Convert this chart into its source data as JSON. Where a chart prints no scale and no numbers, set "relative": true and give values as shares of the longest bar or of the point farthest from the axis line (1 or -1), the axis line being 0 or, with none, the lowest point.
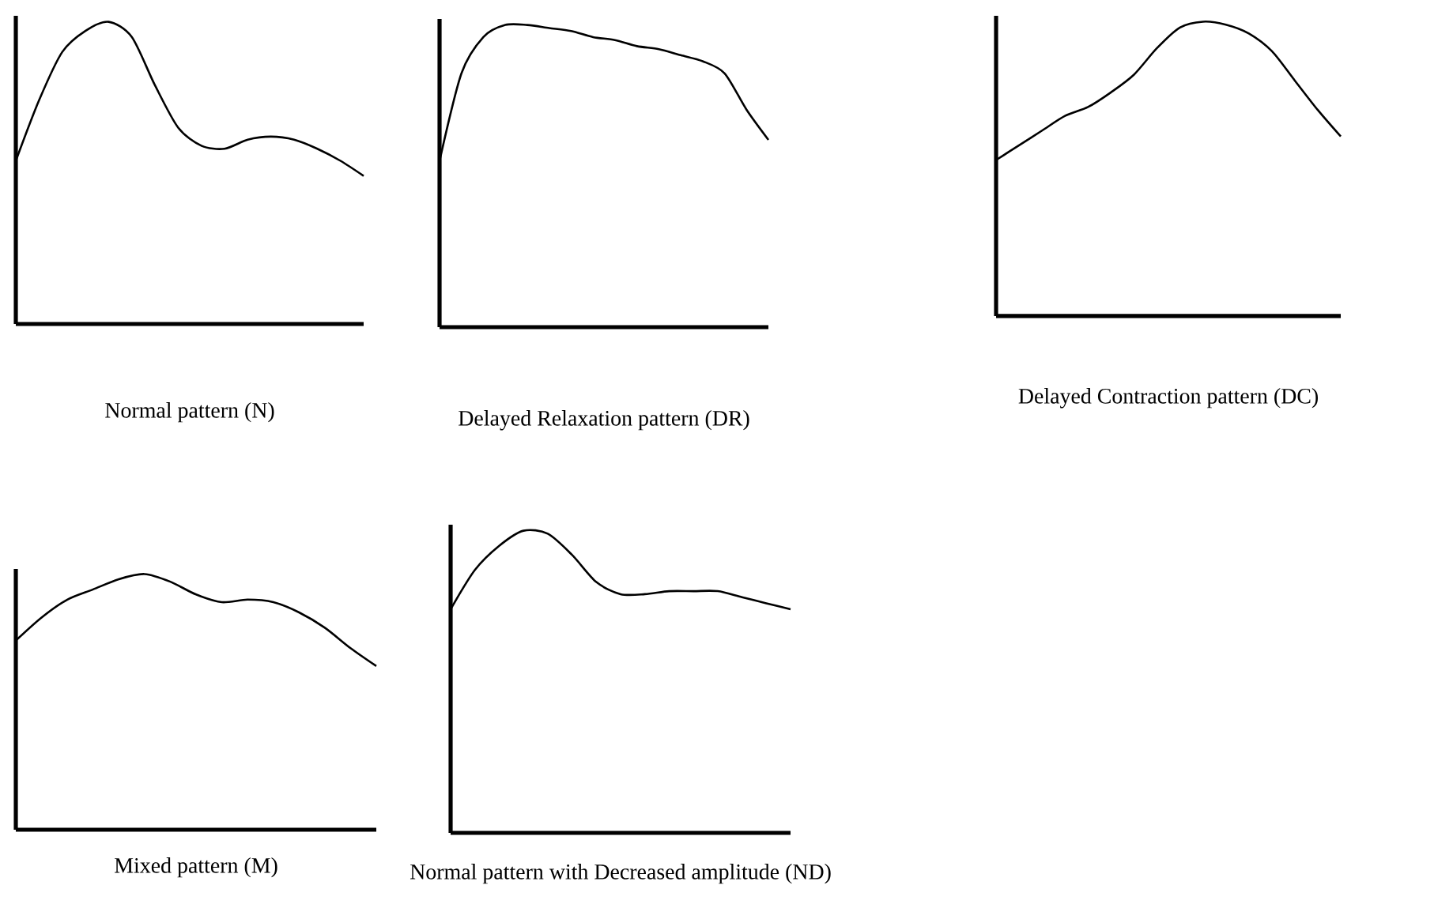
{
  "chart_data": [
    {
      "type": "line",
      "title": "Normal pattern (N)",
      "relative": true,
      "categories": [
        null,
        null,
        null,
        null,
        null,
        null,
        null,
        null,
        null,
        null,
        null,
        null,
        null,
        null,
        null,
        null
      ],
      "series": [
        {
          "color": "#000000",
          "values": [
            0.54,
            0.74,
            0.9,
            0.97,
            1,
            0.95,
            0.79,
            0.65,
            0.59,
            0.58,
            0.61,
            0.62,
            0.61,
            0.58,
            0.54,
            0.49
          ]
        }
      ]
    },
    {
      "type": "line",
      "title": "Delayed Relaxation pattern (DR)",
      "relative": true,
      "categories": [
        null,
        null,
        null,
        null,
        null,
        null,
        null,
        null,
        null,
        null,
        null,
        null,
        null,
        null,
        null,
        null
      ],
      "series": [
        {
          "color": "#000000",
          "values": [
            0.55,
            0.84,
            0.96,
            1,
            1,
            0.99,
            0.98,
            0.96,
            0.95,
            0.93,
            0.92,
            0.9,
            0.88,
            0.84,
            0.72,
            0.62
          ]
        }
      ]
    },
    {
      "type": "line",
      "title": "Delayed Contraction pattern (DC)",
      "relative": true,
      "categories": [
        null,
        null,
        null,
        null,
        null,
        null,
        null,
        null,
        null,
        null,
        null,
        null,
        null,
        null,
        null,
        null
      ],
      "series": [
        {
          "color": "#000000",
          "values": [
            0.53,
            0.58,
            0.63,
            0.68,
            0.71,
            0.76,
            0.82,
            0.91,
            0.98,
            1,
            0.99,
            0.96,
            0.9,
            0.8,
            0.7,
            0.61
          ]
        }
      ]
    },
    {
      "type": "line",
      "title": "Mixed pattern (M)",
      "relative": true,
      "categories": [
        null,
        null,
        null,
        null,
        null,
        null,
        null,
        null,
        null,
        null,
        null,
        null,
        null,
        null,
        null
      ],
      "series": [
        {
          "color": "#000000",
          "values": [
            0.74,
            0.83,
            0.9,
            0.94,
            0.98,
            1,
            0.97,
            0.92,
            0.89,
            0.9,
            0.89,
            0.85,
            0.79,
            0.71,
            0.64
          ]
        }
      ]
    },
    {
      "type": "line",
      "title": "Normal pattern with Decreased amplitude (ND)",
      "relative": true,
      "categories": [
        null,
        null,
        null,
        null,
        null,
        null,
        null,
        null,
        null,
        null,
        null,
        null,
        null,
        null,
        null
      ],
      "series": [
        {
          "color": "#000000",
          "values": [
            0.74,
            0.87,
            0.95,
            1,
            0.99,
            0.92,
            0.83,
            0.79,
            0.79,
            0.8,
            0.8,
            0.8,
            0.78,
            0.76,
            0.74
          ]
        }
      ]
    }
  ]
}
